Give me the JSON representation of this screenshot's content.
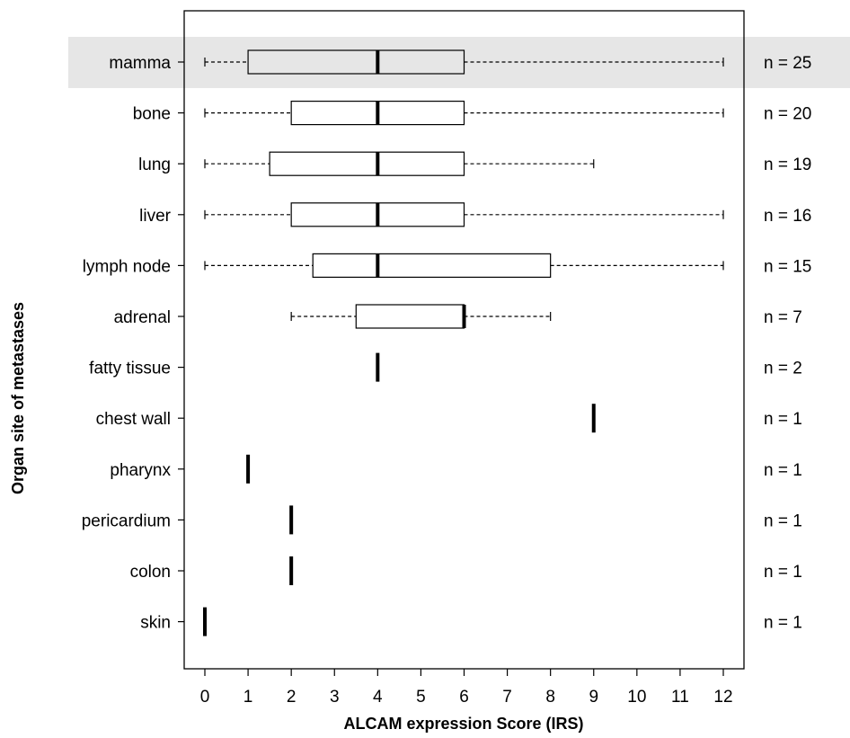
{
  "chart_data": {
    "type": "boxplot",
    "orientation": "horizontal",
    "xlabel": "ALCAM  expression Score (IRS)",
    "ylabel": "Organ site of metastases",
    "xlim": [
      0,
      12
    ],
    "x_ticks": [
      0,
      1,
      2,
      3,
      4,
      5,
      6,
      7,
      8,
      9,
      10,
      11,
      12
    ],
    "grid": false,
    "highlight": {
      "category": "mamma",
      "color": "#e6e6e6"
    },
    "categories": [
      "mamma",
      "bone",
      "lung",
      "liver",
      "lymph node",
      "adrenal",
      "fatty tissue",
      "chest wall",
      "pharynx",
      "pericardium",
      "colon",
      "skin"
    ],
    "n_labels": [
      "n = 25",
      "n = 20",
      "n = 19",
      "n = 16",
      "n = 15",
      "n = 7",
      "n = 2",
      "n = 1",
      "n = 1",
      "n = 1",
      "n = 1",
      "n = 1"
    ],
    "boxes": [
      {
        "category": "mamma",
        "n": 25,
        "min": 0,
        "q1": 1,
        "median": 4,
        "q3": 6,
        "max": 12
      },
      {
        "category": "bone",
        "n": 20,
        "min": 0,
        "q1": 2,
        "median": 4,
        "q3": 6,
        "max": 12
      },
      {
        "category": "lung",
        "n": 19,
        "min": 0,
        "q1": 1.5,
        "median": 4,
        "q3": 6,
        "max": 9
      },
      {
        "category": "liver",
        "n": 16,
        "min": 0,
        "q1": 2,
        "median": 4,
        "q3": 6,
        "max": 12
      },
      {
        "category": "lymph node",
        "n": 15,
        "min": 0,
        "q1": 2.5,
        "median": 4,
        "q3": 8,
        "max": 12
      },
      {
        "category": "adrenal",
        "n": 7,
        "min": 2,
        "q1": 3.5,
        "median": 6,
        "q3": 6,
        "max": 8
      },
      {
        "category": "fatty tissue",
        "n": 2,
        "min": 4,
        "q1": 4,
        "median": 4,
        "q3": 4,
        "max": 4
      },
      {
        "category": "chest wall",
        "n": 1,
        "min": 9,
        "q1": 9,
        "median": 9,
        "q3": 9,
        "max": 9
      },
      {
        "category": "pharynx",
        "n": 1,
        "min": 1,
        "q1": 1,
        "median": 1,
        "q3": 1,
        "max": 1
      },
      {
        "category": "pericardium",
        "n": 1,
        "min": 2,
        "q1": 2,
        "median": 2,
        "q3": 2,
        "max": 2
      },
      {
        "category": "colon",
        "n": 1,
        "min": 2,
        "q1": 2,
        "median": 2,
        "q3": 2,
        "max": 2
      },
      {
        "category": "skin",
        "n": 1,
        "min": 0,
        "q1": 0,
        "median": 0,
        "q3": 0,
        "max": 0
      }
    ]
  }
}
